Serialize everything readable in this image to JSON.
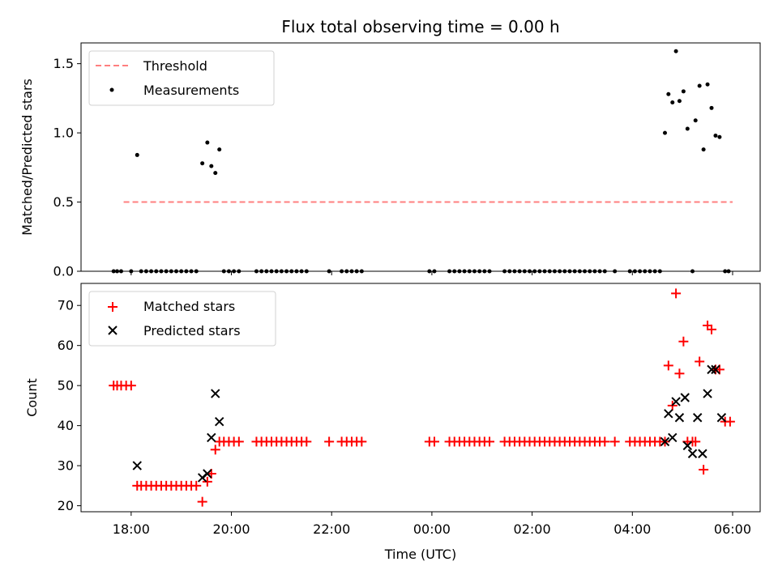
{
  "title": "Flux total observing time = 0.00 h",
  "chart_data": [
    {
      "type": "scatter",
      "ylabel": "Matched/Predicted stars",
      "xlabel": "",
      "ylim": [
        0.0,
        1.65
      ],
      "yticks": [
        0.0,
        0.5,
        1.0,
        1.5
      ],
      "ytick_labels": [
        "0.0",
        "0.5",
        "1.0",
        "1.5"
      ],
      "xlim_hours": [
        17.0,
        30.55
      ],
      "legend_position": "upper-left",
      "threshold": {
        "name": "Threshold",
        "value": 0.5,
        "x_range": [
          17.85,
          30.0
        ],
        "color": "#ff7f7f",
        "style": "dashed"
      },
      "series": [
        {
          "name": "Measurements",
          "color": "#000000",
          "marker": "dot",
          "points": [
            [
              17.65,
              0
            ],
            [
              17.72,
              0
            ],
            [
              17.8,
              0
            ],
            [
              18.0,
              0
            ],
            [
              18.12,
              0.84
            ],
            [
              18.2,
              0
            ],
            [
              18.3,
              0
            ],
            [
              18.4,
              0
            ],
            [
              18.5,
              0
            ],
            [
              18.6,
              0
            ],
            [
              18.7,
              0
            ],
            [
              18.8,
              0
            ],
            [
              18.9,
              0
            ],
            [
              19.0,
              0
            ],
            [
              19.1,
              0
            ],
            [
              19.2,
              0
            ],
            [
              19.3,
              0
            ],
            [
              19.42,
              0.78
            ],
            [
              19.52,
              0.93
            ],
            [
              19.6,
              0.76
            ],
            [
              19.68,
              0.71
            ],
            [
              19.76,
              0.88
            ],
            [
              19.85,
              0
            ],
            [
              19.95,
              0
            ],
            [
              20.05,
              0
            ],
            [
              20.15,
              0
            ],
            [
              20.5,
              0
            ],
            [
              20.6,
              0
            ],
            [
              20.7,
              0
            ],
            [
              20.8,
              0
            ],
            [
              20.9,
              0
            ],
            [
              21.0,
              0
            ],
            [
              21.1,
              0
            ],
            [
              21.2,
              0
            ],
            [
              21.3,
              0
            ],
            [
              21.4,
              0
            ],
            [
              21.5,
              0
            ],
            [
              21.95,
              0
            ],
            [
              22.2,
              0
            ],
            [
              22.3,
              0
            ],
            [
              22.4,
              0
            ],
            [
              22.5,
              0
            ],
            [
              22.6,
              0
            ],
            [
              23.95,
              0
            ],
            [
              24.05,
              0
            ],
            [
              24.35,
              0
            ],
            [
              24.45,
              0
            ],
            [
              24.55,
              0
            ],
            [
              24.65,
              0
            ],
            [
              24.75,
              0
            ],
            [
              24.85,
              0
            ],
            [
              24.95,
              0
            ],
            [
              25.05,
              0
            ],
            [
              25.15,
              0
            ],
            [
              25.45,
              0
            ],
            [
              25.55,
              0
            ],
            [
              25.65,
              0
            ],
            [
              25.75,
              0
            ],
            [
              25.85,
              0
            ],
            [
              25.95,
              0
            ],
            [
              26.05,
              0
            ],
            [
              26.15,
              0
            ],
            [
              26.25,
              0
            ],
            [
              26.35,
              0
            ],
            [
              26.45,
              0
            ],
            [
              26.55,
              0
            ],
            [
              26.65,
              0
            ],
            [
              26.75,
              0
            ],
            [
              26.85,
              0
            ],
            [
              26.95,
              0
            ],
            [
              27.05,
              0
            ],
            [
              27.15,
              0
            ],
            [
              27.25,
              0
            ],
            [
              27.35,
              0
            ],
            [
              27.45,
              0
            ],
            [
              27.65,
              0
            ],
            [
              27.95,
              0
            ],
            [
              28.05,
              0
            ],
            [
              28.15,
              0
            ],
            [
              28.25,
              0
            ],
            [
              28.35,
              0
            ],
            [
              28.45,
              0
            ],
            [
              28.55,
              0
            ],
            [
              28.65,
              1.0
            ],
            [
              28.72,
              1.28
            ],
            [
              28.8,
              1.22
            ],
            [
              28.87,
              1.59
            ],
            [
              28.94,
              1.23
            ],
            [
              29.02,
              1.3
            ],
            [
              29.1,
              1.03
            ],
            [
              29.2,
              0
            ],
            [
              29.26,
              1.09
            ],
            [
              29.34,
              1.34
            ],
            [
              29.42,
              0.88
            ],
            [
              29.5,
              1.35
            ],
            [
              29.58,
              1.18
            ],
            [
              29.66,
              0.98
            ],
            [
              29.74,
              0.97
            ],
            [
              29.85,
              0
            ],
            [
              29.92,
              0
            ]
          ]
        }
      ]
    },
    {
      "type": "scatter",
      "xlabel": "Time (UTC)",
      "ylabel": "Count",
      "ylim": [
        18.5,
        75.5
      ],
      "yticks": [
        20,
        30,
        40,
        50,
        60,
        70
      ],
      "ytick_labels": [
        "20",
        "30",
        "40",
        "50",
        "60",
        "70"
      ],
      "xlim_hours": [
        17.0,
        30.55
      ],
      "xticks_hours": [
        18,
        20,
        22,
        24,
        26,
        28,
        30
      ],
      "xtick_labels": [
        "18:00",
        "20:00",
        "22:00",
        "00:00",
        "02:00",
        "04:00",
        "06:00"
      ],
      "legend_position": "upper-left",
      "series": [
        {
          "name": "Matched stars",
          "color": "#ff0000",
          "marker": "plus",
          "points": [
            [
              17.65,
              50
            ],
            [
              17.72,
              50
            ],
            [
              17.8,
              50
            ],
            [
              17.9,
              50
            ],
            [
              18.0,
              50
            ],
            [
              18.12,
              25
            ],
            [
              18.2,
              25
            ],
            [
              18.3,
              25
            ],
            [
              18.4,
              25
            ],
            [
              18.5,
              25
            ],
            [
              18.6,
              25
            ],
            [
              18.7,
              25
            ],
            [
              18.8,
              25
            ],
            [
              18.9,
              25
            ],
            [
              19.0,
              25
            ],
            [
              19.1,
              25
            ],
            [
              19.2,
              25
            ],
            [
              19.3,
              25
            ],
            [
              19.42,
              21
            ],
            [
              19.52,
              26
            ],
            [
              19.6,
              28
            ],
            [
              19.68,
              34
            ],
            [
              19.76,
              36
            ],
            [
              19.85,
              36
            ],
            [
              19.95,
              36
            ],
            [
              20.05,
              36
            ],
            [
              20.15,
              36
            ],
            [
              20.5,
              36
            ],
            [
              20.6,
              36
            ],
            [
              20.7,
              36
            ],
            [
              20.8,
              36
            ],
            [
              20.9,
              36
            ],
            [
              21.0,
              36
            ],
            [
              21.1,
              36
            ],
            [
              21.2,
              36
            ],
            [
              21.3,
              36
            ],
            [
              21.4,
              36
            ],
            [
              21.5,
              36
            ],
            [
              21.95,
              36
            ],
            [
              22.2,
              36
            ],
            [
              22.3,
              36
            ],
            [
              22.4,
              36
            ],
            [
              22.5,
              36
            ],
            [
              22.6,
              36
            ],
            [
              23.95,
              36
            ],
            [
              24.05,
              36
            ],
            [
              24.35,
              36
            ],
            [
              24.45,
              36
            ],
            [
              24.55,
              36
            ],
            [
              24.65,
              36
            ],
            [
              24.75,
              36
            ],
            [
              24.85,
              36
            ],
            [
              24.95,
              36
            ],
            [
              25.05,
              36
            ],
            [
              25.15,
              36
            ],
            [
              25.45,
              36
            ],
            [
              25.55,
              36
            ],
            [
              25.65,
              36
            ],
            [
              25.75,
              36
            ],
            [
              25.85,
              36
            ],
            [
              25.95,
              36
            ],
            [
              26.05,
              36
            ],
            [
              26.15,
              36
            ],
            [
              26.25,
              36
            ],
            [
              26.35,
              36
            ],
            [
              26.45,
              36
            ],
            [
              26.55,
              36
            ],
            [
              26.65,
              36
            ],
            [
              26.75,
              36
            ],
            [
              26.85,
              36
            ],
            [
              26.95,
              36
            ],
            [
              27.05,
              36
            ],
            [
              27.15,
              36
            ],
            [
              27.25,
              36
            ],
            [
              27.35,
              36
            ],
            [
              27.45,
              36
            ],
            [
              27.65,
              36
            ],
            [
              27.95,
              36
            ],
            [
              28.05,
              36
            ],
            [
              28.15,
              36
            ],
            [
              28.25,
              36
            ],
            [
              28.35,
              36
            ],
            [
              28.45,
              36
            ],
            [
              28.55,
              36
            ],
            [
              28.65,
              36
            ],
            [
              28.72,
              55
            ],
            [
              28.8,
              45
            ],
            [
              28.87,
              73
            ],
            [
              28.94,
              53
            ],
            [
              29.02,
              61
            ],
            [
              29.1,
              36
            ],
            [
              29.2,
              36
            ],
            [
              29.26,
              36
            ],
            [
              29.34,
              56
            ],
            [
              29.42,
              29
            ],
            [
              29.5,
              65
            ],
            [
              29.58,
              64
            ],
            [
              29.66,
              54
            ],
            [
              29.74,
              54
            ],
            [
              29.85,
              41
            ],
            [
              29.95,
              41
            ]
          ]
        },
        {
          "name": "Predicted stars",
          "color": "#000000",
          "marker": "x",
          "points": [
            [
              18.12,
              30
            ],
            [
              19.42,
              27
            ],
            [
              19.52,
              28
            ],
            [
              19.6,
              37
            ],
            [
              19.68,
              48
            ],
            [
              19.76,
              41
            ],
            [
              28.65,
              36
            ],
            [
              28.72,
              43
            ],
            [
              28.8,
              37
            ],
            [
              28.87,
              46
            ],
            [
              28.94,
              42
            ],
            [
              29.05,
              47
            ],
            [
              29.1,
              35
            ],
            [
              29.2,
              33
            ],
            [
              29.3,
              42
            ],
            [
              29.4,
              33
            ],
            [
              29.5,
              48
            ],
            [
              29.58,
              54
            ],
            [
              29.66,
              54
            ],
            [
              29.78,
              42
            ]
          ]
        }
      ]
    }
  ]
}
